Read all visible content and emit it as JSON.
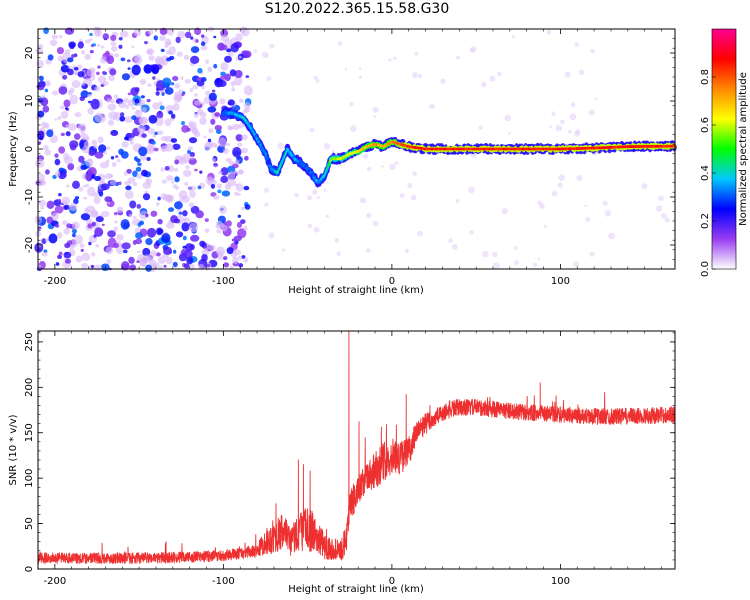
{
  "title": "S120.2022.365.15.58.G30",
  "chart_data": [
    {
      "type": "heatmap",
      "title": "S120.2022.365.15.58.G30",
      "xlabel": "Height of straight line (km)",
      "ylabel": "Frequency (Hz)",
      "xlim": [
        -210,
        168
      ],
      "ylim": [
        -25,
        25
      ],
      "xticks": [
        -200,
        -100,
        0,
        100
      ],
      "yticks": [
        -20,
        -10,
        0,
        10,
        20
      ],
      "grid": false,
      "colorbar": {
        "label": "Normalized spectral amplitude",
        "range": [
          0.0,
          1.0
        ],
        "ticks": [
          0.0,
          0.2,
          0.4,
          0.6,
          0.8
        ],
        "colors": [
          "#ffffff",
          "#9a3cf0",
          "#0000ff",
          "#00c8ff",
          "#00ff00",
          "#ffff00",
          "#ff8800",
          "#ff0000",
          "#ff0090"
        ]
      },
      "ridge": {
        "x": [
          -100,
          -95,
          -88,
          -83,
          -80,
          -75,
          -72,
          -68,
          -62,
          -58,
          -52,
          -48,
          -44,
          -40,
          -36,
          -30,
          -25,
          -20,
          -15,
          -10,
          -5,
          0,
          5,
          10,
          20,
          40,
          60,
          80,
          100,
          120,
          140,
          168
        ],
        "frequency": [
          7.5,
          7.5,
          6.5,
          4,
          2,
          -1,
          -4,
          -5,
          0,
          -2,
          -3.5,
          -5,
          -7,
          -5.5,
          -2,
          -2,
          -1,
          -0.5,
          0.5,
          1,
          0.5,
          1.5,
          1,
          0.5,
          0,
          0,
          0,
          0,
          0,
          0.2,
          0.5,
          0.6
        ],
        "amplitude": [
          0.3,
          0.35,
          0.4,
          0.35,
          0.35,
          0.3,
          0.3,
          0.4,
          0.4,
          0.35,
          0.3,
          0.3,
          0.35,
          0.4,
          0.55,
          0.6,
          0.6,
          0.65,
          0.7,
          0.75,
          0.7,
          0.75,
          0.8,
          0.85,
          0.85,
          0.85,
          0.85,
          0.85,
          0.85,
          0.85,
          0.85,
          0.85
        ]
      },
      "noise_region_x": [
        -210,
        -85
      ]
    },
    {
      "type": "line",
      "xlabel": "Height of straight line (km)",
      "ylabel": "SNR (10 * v/v)",
      "xlim": [
        -210,
        168
      ],
      "ylim": [
        0,
        262
      ],
      "xticks": [
        -200,
        -100,
        0,
        100
      ],
      "yticks": [
        0,
        50,
        100,
        150,
        200,
        250
      ],
      "grid": false,
      "line_color": "#ee3030",
      "series": [
        {
          "x": [
            -210,
            -180,
            -150,
            -120,
            -100,
            -90,
            -80,
            -75,
            -70,
            -65,
            -60,
            -55,
            -50,
            -45,
            -40,
            -35,
            -30,
            -27,
            -25,
            -20,
            -15,
            -10,
            -5,
            0,
            5,
            10,
            15,
            20,
            25,
            30,
            35,
            40,
            50,
            60,
            80,
            100,
            120,
            140,
            168
          ],
          "values": [
            12,
            12,
            12,
            13,
            15,
            17,
            20,
            30,
            35,
            40,
            30,
            42,
            45,
            38,
            25,
            22,
            20,
            35,
            70,
            85,
            100,
            110,
            118,
            125,
            122,
            130,
            150,
            160,
            165,
            172,
            176,
            178,
            178,
            176,
            172,
            170,
            168,
            168,
            170
          ],
          "noise": [
            6,
            6,
            6,
            6,
            6,
            6,
            7,
            14,
            18,
            20,
            18,
            22,
            25,
            20,
            14,
            12,
            12,
            16,
            18,
            16,
            18,
            22,
            22,
            20,
            18,
            16,
            14,
            12,
            10,
            10,
            10,
            9,
            9,
            9,
            9,
            9,
            9,
            9,
            9
          ],
          "spikes": [
            {
              "x": -55.5,
              "value": 120
            },
            {
              "x": -52.5,
              "value": 115
            },
            {
              "x": -48.5,
              "value": 108
            },
            {
              "x": -25.5,
              "value": 262
            },
            {
              "x": -19.5,
              "value": 162
            },
            {
              "x": 8.5,
              "value": 192
            },
            {
              "x": 88,
              "value": 205
            }
          ]
        }
      ]
    }
  ]
}
